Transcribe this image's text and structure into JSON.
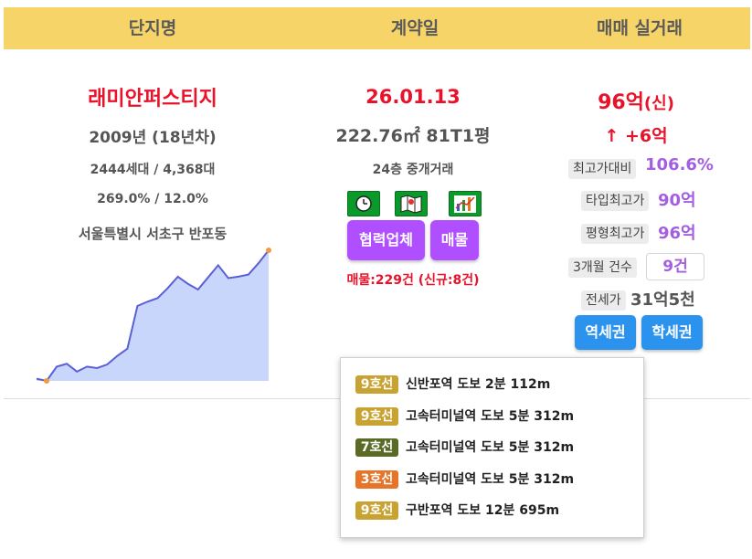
{
  "header": {
    "col1": "단지명",
    "col2": "계약일",
    "col3": "매매 실거래"
  },
  "complex": {
    "name": "래미안퍼스티지",
    "year": "2009년 (18년차)",
    "units": "2444세대 / 4,368대",
    "ratio": "269.0% / 12.0%",
    "address": "서울특별시 서초구 반포동"
  },
  "contract": {
    "date": "26.01.13",
    "area": "222.76㎡ 81T1평",
    "floor": "24층 중개거래",
    "partner_button": "협력업체",
    "listing_button": "매물",
    "listings": "매물:229건 (신규:8건)"
  },
  "trade": {
    "price_main": "96억",
    "price_suffix": "(신)",
    "change": "↑ +6억",
    "vs_max_label": "최고가대비",
    "vs_max_value": "106.6%",
    "type_max_label": "타입최고가",
    "type_max_value": "90억",
    "area_max_label": "평형최고가",
    "area_max_value": "96억",
    "count3m_label": "3개월 건수",
    "count3m_value": "9건",
    "jeonse_label": "전세가",
    "jeonse_value": "31억5천",
    "station_button": "역세권",
    "school_button": "학세권"
  },
  "stations": [
    {
      "line": "9호선",
      "color": "#c9a332",
      "text": "신반포역  도보 2분  112m"
    },
    {
      "line": "9호선",
      "color": "#c9a332",
      "text": "고속터미널역  도보 5분  312m"
    },
    {
      "line": "7호선",
      "color": "#5b6b26",
      "text": "고속터미널역  도보 5분  312m"
    },
    {
      "line": "3호선",
      "color": "#e8742a",
      "text": "고속터미널역  도보 5분  312m"
    },
    {
      "line": "9호선",
      "color": "#c9a332",
      "text": "구반포역  도보 12분  695m"
    }
  ],
  "chart_data": {
    "type": "area",
    "values": [
      0.3,
      0.0,
      2.0,
      2.4,
      1.3,
      2.0,
      1.8,
      2.3,
      3.5,
      4.5,
      10.5,
      11.1,
      11.6,
      13.0,
      14.6,
      13.6,
      12.8,
      14.5,
      16.2,
      14.4,
      14.6,
      14.9,
      16.5,
      18.3
    ],
    "line_color": "#5a5fd6",
    "fill_color": "#c9d6fb",
    "marker_color": "#f19a3e"
  }
}
